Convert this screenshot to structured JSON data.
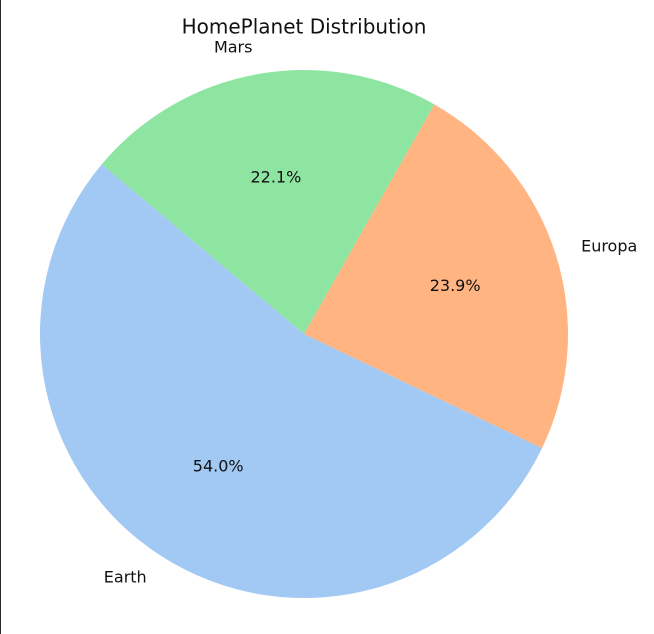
{
  "chart_data": {
    "type": "pie",
    "title": "HomePlanet Distribution",
    "slices": [
      {
        "label": "Earth",
        "value": 54.0,
        "pct_label": "54.0%",
        "color": "#a1c9f4"
      },
      {
        "label": "Europa",
        "value": 23.9,
        "pct_label": "23.9%",
        "color": "#ffb482"
      },
      {
        "label": "Mars",
        "value": 22.1,
        "pct_label": "22.1%",
        "color": "#8de5a1"
      }
    ],
    "start_angle_deg": 140,
    "direction": "counterclockwise",
    "aspect": "equal"
  }
}
